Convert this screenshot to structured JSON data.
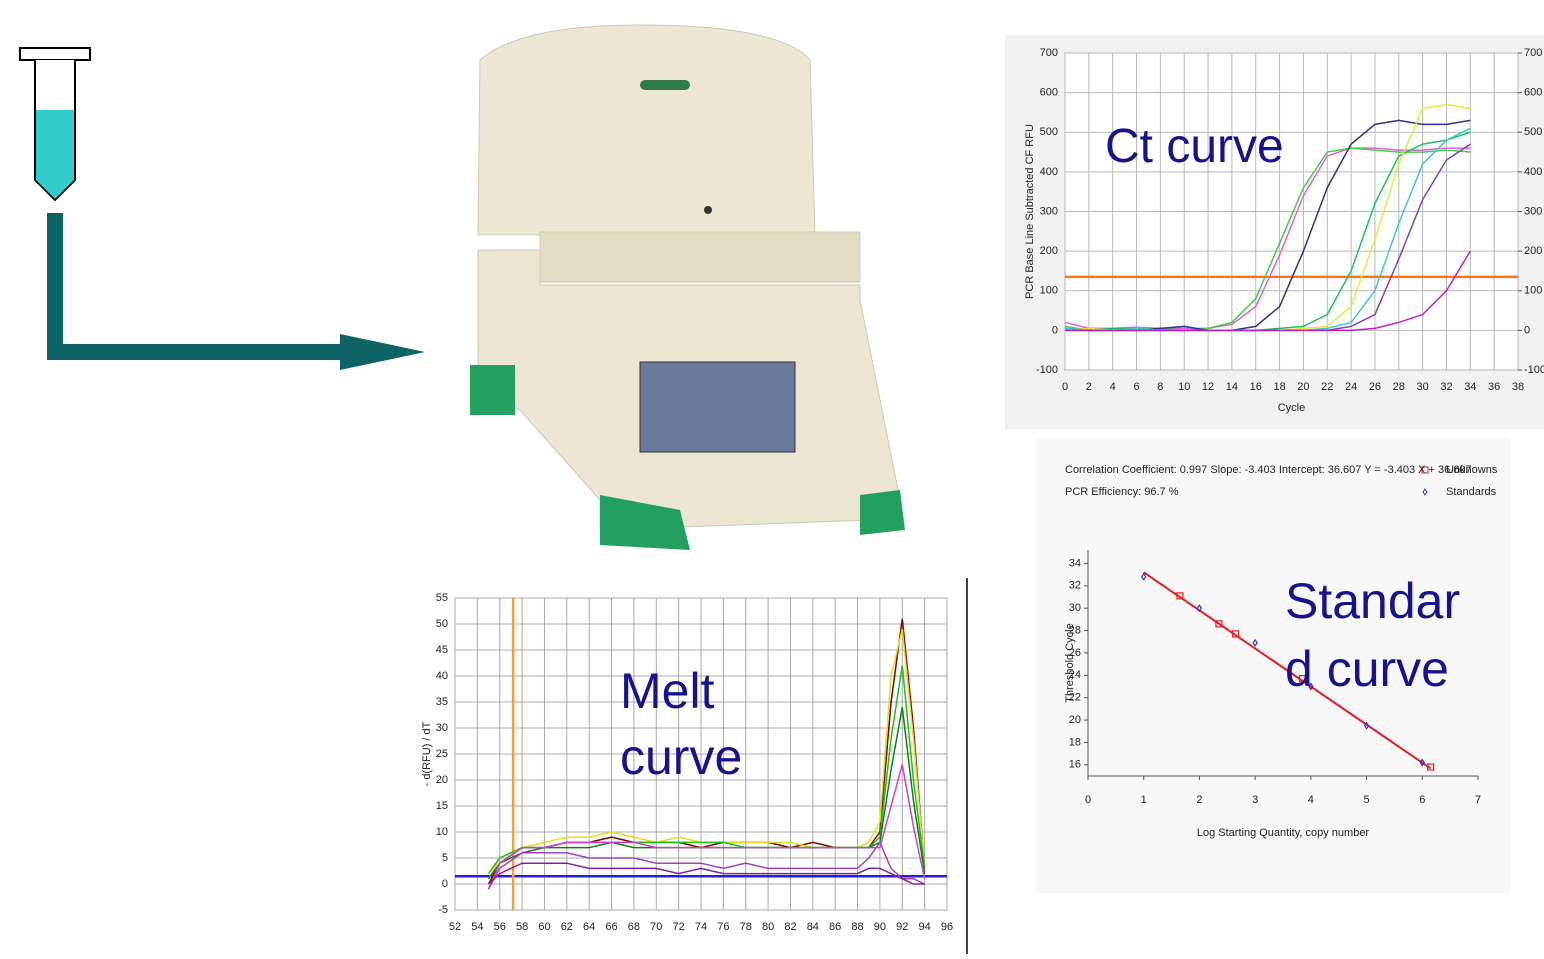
{
  "chart_data": [
    {
      "type": "line",
      "annotation": [
        "Ct curve"
      ],
      "ylabel": "PCR Base Line Subtracted CF RFU",
      "xlabel": "Cycle",
      "xlim": [
        0,
        38
      ],
      "xticks": [
        0,
        2,
        4,
        6,
        8,
        10,
        12,
        14,
        16,
        18,
        20,
        22,
        24,
        26,
        28,
        30,
        32,
        34,
        36,
        38
      ],
      "ylim": [
        -100,
        700
      ],
      "yticks": [
        -100,
        0,
        100,
        200,
        300,
        400,
        500,
        600,
        700
      ],
      "y2lim": [
        -100,
        700
      ],
      "y2ticks": [
        -100,
        0,
        100,
        200,
        300,
        400,
        500,
        600,
        700
      ],
      "grid": true,
      "threshold": 135,
      "threshold_color": "#f07820",
      "x": [
        0,
        2,
        4,
        6,
        8,
        10,
        12,
        14,
        16,
        18,
        20,
        22,
        24,
        26,
        28,
        30,
        32,
        34
      ],
      "series": [
        {
          "color": "#e060e0",
          "values": [
            20,
            5,
            5,
            8,
            5,
            5,
            5,
            15,
            60,
            190,
            340,
            440,
            460,
            460,
            455,
            455,
            460,
            460
          ]
        },
        {
          "color": "#40d040",
          "values": [
            10,
            0,
            5,
            5,
            5,
            0,
            5,
            20,
            80,
            220,
            360,
            450,
            460,
            455,
            450,
            450,
            455,
            450
          ]
        },
        {
          "color": "#303090",
          "values": [
            0,
            5,
            0,
            0,
            5,
            10,
            0,
            0,
            10,
            60,
            200,
            360,
            470,
            520,
            530,
            520,
            520,
            530
          ]
        },
        {
          "color": "#20c060",
          "values": [
            5,
            0,
            5,
            5,
            0,
            0,
            0,
            0,
            0,
            5,
            10,
            40,
            150,
            320,
            440,
            470,
            480,
            500
          ]
        },
        {
          "color": "#e8e840",
          "values": [
            0,
            5,
            0,
            0,
            0,
            0,
            0,
            0,
            0,
            0,
            5,
            10,
            60,
            230,
            420,
            560,
            570,
            560
          ]
        },
        {
          "color": "#40c8d0",
          "values": [
            5,
            0,
            0,
            5,
            0,
            0,
            0,
            0,
            0,
            0,
            0,
            5,
            20,
            100,
            270,
            420,
            480,
            510
          ]
        },
        {
          "color": "#8040c0",
          "values": [
            0,
            0,
            0,
            0,
            0,
            0,
            0,
            0,
            0,
            0,
            0,
            0,
            10,
            40,
            180,
            330,
            430,
            470
          ]
        },
        {
          "color": "#c020c0",
          "values": [
            0,
            0,
            0,
            0,
            0,
            0,
            0,
            0,
            0,
            0,
            0,
            0,
            0,
            5,
            20,
            40,
            100,
            200
          ]
        }
      ]
    },
    {
      "type": "line",
      "annotation": [
        "Melt",
        "curve"
      ],
      "ylabel": "- d(RFU) / dT",
      "xlim": [
        52,
        96
      ],
      "xticks": [
        52,
        54,
        56,
        58,
        60,
        62,
        64,
        66,
        68,
        70,
        72,
        74,
        76,
        78,
        80,
        82,
        84,
        86,
        88,
        90,
        92,
        94,
        96
      ],
      "ylim": [
        -5,
        55
      ],
      "yticks": [
        -5,
        0,
        5,
        10,
        15,
        20,
        25,
        30,
        35,
        40,
        45,
        50,
        55
      ],
      "grid": true,
      "hline": 1.5,
      "hline_color": "#2020e0",
      "vline": 57.2,
      "vline_color": "#f0a040",
      "x": [
        55,
        56,
        58,
        60,
        62,
        64,
        66,
        68,
        70,
        72,
        74,
        76,
        78,
        80,
        82,
        84,
        86,
        88,
        89,
        90,
        91,
        92,
        93,
        94
      ],
      "series": [
        {
          "color": "#800000",
          "values": [
            0,
            4,
            7,
            7,
            8,
            8,
            9,
            8,
            8,
            8,
            7,
            8,
            8,
            8,
            7,
            8,
            7,
            7,
            7,
            10,
            35,
            51,
            30,
            3
          ]
        },
        {
          "color": "#e0e020",
          "values": [
            1,
            5,
            7,
            8,
            9,
            9,
            10,
            9,
            8,
            9,
            8,
            8,
            8,
            8,
            8,
            7,
            7,
            7,
            8,
            12,
            40,
            49,
            28,
            3
          ]
        },
        {
          "color": "#20c020",
          "values": [
            2,
            5,
            7,
            7,
            8,
            8,
            8,
            8,
            8,
            8,
            8,
            8,
            7,
            7,
            7,
            7,
            7,
            7,
            7,
            9,
            28,
            42,
            20,
            3
          ]
        },
        {
          "color": "#108010",
          "values": [
            1,
            4,
            6,
            7,
            7,
            7,
            8,
            7,
            7,
            7,
            7,
            7,
            7,
            7,
            7,
            7,
            7,
            7,
            7,
            8,
            22,
            34,
            16,
            2
          ]
        },
        {
          "color": "#d040d0",
          "values": [
            -1,
            4,
            7,
            7,
            8,
            8,
            8,
            8,
            7,
            7,
            7,
            7,
            7,
            7,
            7,
            7,
            7,
            7,
            7,
            7,
            15,
            23,
            11,
            1
          ]
        },
        {
          "color": "#a040c0",
          "values": [
            -1,
            3,
            6,
            6,
            6,
            5,
            5,
            5,
            4,
            4,
            4,
            3,
            4,
            3,
            3,
            3,
            3,
            3,
            5,
            8,
            3,
            1,
            1,
            0
          ]
        },
        {
          "color": "#8020a0",
          "values": [
            0,
            2,
            4,
            4,
            4,
            3,
            3,
            3,
            3,
            2,
            3,
            2,
            2,
            2,
            2,
            2,
            2,
            2,
            3,
            3,
            2,
            1,
            0,
            0
          ]
        }
      ]
    },
    {
      "type": "scatter",
      "annotation": [
        "Standar",
        "d curve"
      ],
      "info": [
        "Correlation Coefficient: 0.997  Slope: -3.403  Intercept: 36.607  Y = -3.403 X + 36.607",
        "PCR Efficiency: 96.7 %"
      ],
      "ylabel": "Threshold Cycle",
      "xlabel": "Log Starting Quantity, copy number",
      "xlim": [
        0,
        7
      ],
      "xticks": [
        0,
        1,
        2,
        3,
        4,
        5,
        6,
        7
      ],
      "ylim": [
        15,
        35.2
      ],
      "yticks": [
        16,
        18,
        20,
        22,
        24,
        26,
        28,
        30,
        32,
        34
      ],
      "fit": {
        "slope": -3.403,
        "intercept": 36.607,
        "color": "#e02020"
      },
      "series": [
        {
          "name": "Unknowns",
          "color": "#e02020",
          "x": [
            1.65,
            2.35,
            2.65,
            3.85,
            6.15
          ],
          "values": [
            31.1,
            28.6,
            27.7,
            23.7,
            15.8
          ]
        },
        {
          "name": "Standards",
          "color": "#3030e0",
          "x": [
            1,
            2,
            3,
            4,
            5,
            6
          ],
          "values": [
            32.8,
            30,
            26.9,
            23,
            19.5,
            16.2
          ]
        }
      ]
    }
  ]
}
